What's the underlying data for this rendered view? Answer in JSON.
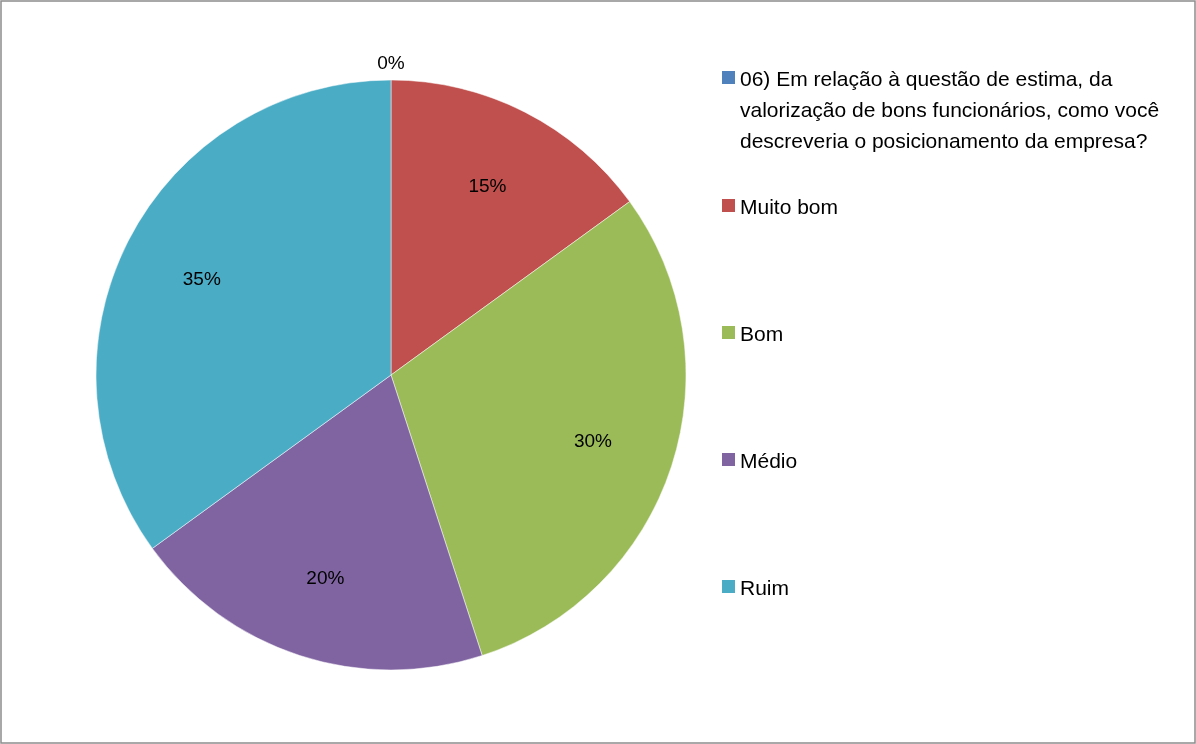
{
  "chart_data": {
    "type": "pie",
    "categories": [
      "06) Em relação à questão de estima, da valorização de bons funcionários, como você descreveria o posicionamento da empresa?",
      "Muito bom",
      "Bom",
      "Médio",
      "Ruim"
    ],
    "values": [
      0,
      15,
      30,
      20,
      35
    ],
    "colors": [
      "#4f81bd",
      "#c0504d",
      "#9bbb59",
      "#8064a2",
      "#4bacc6"
    ],
    "value_labels": [
      "0%",
      "15%",
      "30%",
      "20%",
      "35%"
    ],
    "legend": "right"
  }
}
